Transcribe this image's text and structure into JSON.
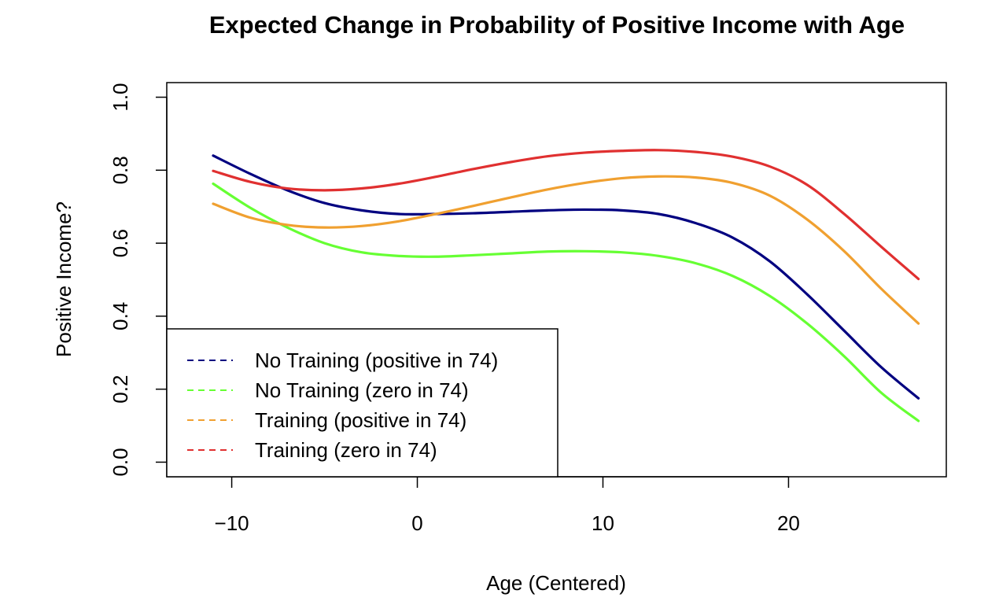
{
  "chart_data": {
    "type": "line",
    "title": "Expected Change in Probability of Positive Income with Age",
    "xlabel": "Age (Centered)",
    "ylabel": "Positive Income?",
    "xlim": [
      -13.5,
      28.5
    ],
    "ylim": [
      -0.04,
      1.04
    ],
    "xticks": [
      -10,
      0,
      10,
      20
    ],
    "xtick_labels": [
      "−10",
      "0",
      "10",
      "20"
    ],
    "yticks": [
      0.0,
      0.2,
      0.4,
      0.6,
      0.8,
      1.0
    ],
    "ytick_labels": [
      "0.0",
      "0.2",
      "0.4",
      "0.6",
      "0.8",
      "1.0"
    ],
    "grid": false,
    "legend_position": "bottom-left",
    "x": [
      -11,
      -9,
      -7,
      -5,
      -3,
      -1,
      1,
      3,
      5,
      7,
      9,
      11,
      13,
      15,
      17,
      19,
      21,
      23,
      25,
      27
    ],
    "series": [
      {
        "name": "No Training (positive in 74)",
        "color": "#000080",
        "values": [
          0.84,
          0.79,
          0.745,
          0.71,
          0.69,
          0.68,
          0.68,
          0.682,
          0.686,
          0.69,
          0.692,
          0.69,
          0.68,
          0.655,
          0.615,
          0.55,
          0.46,
          0.36,
          0.26,
          0.175
        ]
      },
      {
        "name": "No Training (zero in 74)",
        "color": "#66FF33",
        "values": [
          0.763,
          0.697,
          0.643,
          0.6,
          0.575,
          0.565,
          0.563,
          0.567,
          0.572,
          0.577,
          0.578,
          0.575,
          0.565,
          0.545,
          0.51,
          0.455,
          0.38,
          0.29,
          0.19,
          0.113
        ]
      },
      {
        "name": "Training (positive in 74)",
        "color": "#F0A030",
        "values": [
          0.708,
          0.67,
          0.65,
          0.643,
          0.647,
          0.66,
          0.68,
          0.702,
          0.725,
          0.747,
          0.765,
          0.778,
          0.783,
          0.78,
          0.765,
          0.73,
          0.665,
          0.578,
          0.475,
          0.38
        ]
      },
      {
        "name": "Training (zero in 74)",
        "color": "#E03030",
        "values": [
          0.798,
          0.768,
          0.75,
          0.745,
          0.75,
          0.763,
          0.782,
          0.803,
          0.822,
          0.838,
          0.848,
          0.853,
          0.855,
          0.85,
          0.837,
          0.81,
          0.76,
          0.68,
          0.59,
          0.502
        ]
      }
    ]
  }
}
